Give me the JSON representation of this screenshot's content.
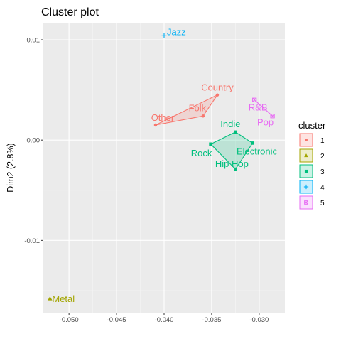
{
  "chart_data": {
    "type": "scatter",
    "title": "Cluster plot",
    "xlabel": "",
    "ylabel": "Dim2 (2.8%)",
    "xlim": [
      -0.0527,
      -0.0273
    ],
    "ylim": [
      -0.0172,
      0.0117
    ],
    "x_ticks": [
      -0.05,
      -0.045,
      -0.04,
      -0.035,
      -0.03
    ],
    "x_tick_labels": [
      "-0.050",
      "-0.045",
      "-0.040",
      "-0.035",
      "-0.030"
    ],
    "y_ticks": [
      -0.01,
      0.0,
      0.01
    ],
    "y_tick_labels": [
      "-0.01",
      "0.00",
      "0.01"
    ],
    "grid": true,
    "legend": {
      "title": "cluster",
      "placement": "right",
      "entries": [
        {
          "label": "1",
          "cluster": 1
        },
        {
          "label": "2",
          "cluster": 2
        },
        {
          "label": "3",
          "cluster": 3
        },
        {
          "label": "4",
          "cluster": 4
        },
        {
          "label": "5",
          "cluster": 5
        }
      ]
    },
    "colors": {
      "1": "#F8766D",
      "2": "#A3A500",
      "3": "#00BF7D",
      "4": "#00B0F6",
      "5": "#E76BF3"
    },
    "points": [
      {
        "label": "Country",
        "x": -0.0344,
        "y": 0.0045,
        "cluster": 1
      },
      {
        "label": "Folk",
        "x": -0.0359,
        "y": 0.0024,
        "cluster": 1
      },
      {
        "label": "Other",
        "x": -0.0409,
        "y": 0.0015,
        "cluster": 1
      },
      {
        "label": "Metal",
        "x": -0.052,
        "y": -0.0158,
        "cluster": 2
      },
      {
        "label": "Indie",
        "x": -0.0325,
        "y": 0.0008,
        "cluster": 3
      },
      {
        "label": "Rock",
        "x": -0.0351,
        "y": -0.0004,
        "cluster": 3
      },
      {
        "label": "Electronic",
        "x": -0.0307,
        "y": -0.0003,
        "cluster": 3
      },
      {
        "label": "Hip Hop",
        "x": -0.0325,
        "y": -0.0029,
        "cluster": 3
      },
      {
        "label": "Jazz",
        "x": -0.04,
        "y": 0.0104,
        "cluster": 4
      },
      {
        "label": "R&B",
        "x": -0.0305,
        "y": 0.004,
        "cluster": 5
      },
      {
        "label": "Pop",
        "x": -0.0286,
        "y": 0.0024,
        "cluster": 5
      }
    ],
    "hulls": [
      {
        "cluster": 1,
        "members": [
          "Country",
          "Folk",
          "Other"
        ]
      },
      {
        "cluster": 3,
        "members": [
          "Indie",
          "Electronic",
          "Hip Hop",
          "Rock"
        ]
      },
      {
        "cluster": 5,
        "members": [
          "R&B",
          "Pop"
        ]
      }
    ]
  }
}
